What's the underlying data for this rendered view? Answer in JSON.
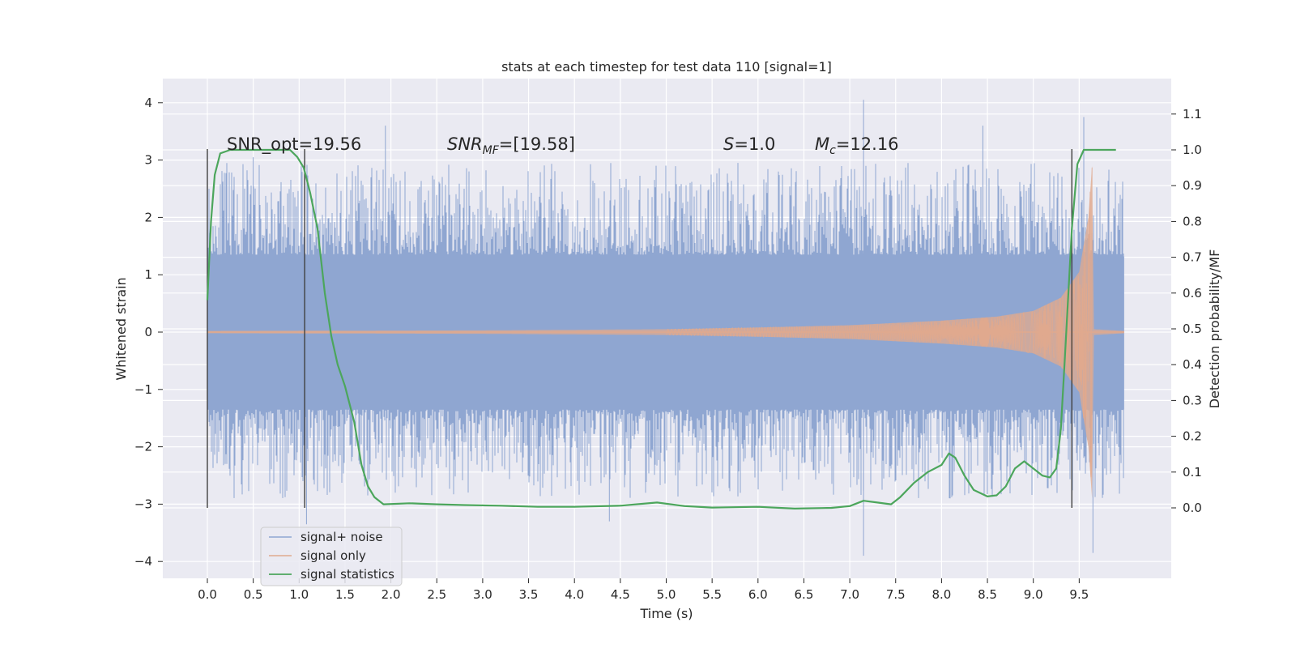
{
  "chart_data": {
    "type": "line",
    "title": "stats at each timestep for test data 110 [signal=1]",
    "xlabel": "Time (s)",
    "ylabel_left": "Whitened strain",
    "ylabel_right": "Detection probability/MF",
    "xlim": [
      -0.5,
      10.5
    ],
    "ylim_left": [
      -4.2,
      4.45
    ],
    "ylim_right": [
      -0.2,
      1.18
    ],
    "x_ticks": [
      "0.0",
      "0.5",
      "1.0",
      "1.5",
      "2.0",
      "2.5",
      "3.0",
      "3.5",
      "4.0",
      "4.5",
      "5.0",
      "5.5",
      "6.0",
      "6.5",
      "7.0",
      "7.5",
      "8.0",
      "8.5",
      "9.0",
      "9.5"
    ],
    "y_left_ticks": [
      "4",
      "3",
      "2",
      "1",
      "0",
      "−1",
      "−2",
      "−3",
      "−4"
    ],
    "y_right_ticks": [
      "1.1",
      "1.0",
      "0.9",
      "0.8",
      "0.7",
      "0.6",
      "0.5",
      "0.4",
      "0.3",
      "0.2",
      "0.1",
      "0.0"
    ],
    "grid": true,
    "legend_position": "bottom-left",
    "annotations": {
      "snr_opt": "SNR_opt=19.56",
      "snr_mf_main": "SNR",
      "snr_mf_sub": "MF",
      "snr_mf_rest": "=[19.58]",
      "s_main": "S",
      "s_rest": "=1.0",
      "mc_main": "M",
      "mc_sub": "c",
      "mc_rest": "=12.16"
    },
    "vertical_markers_x": [
      0.0,
      1.06,
      9.42
    ],
    "series": [
      {
        "name": "signal+ noise",
        "color": "#8fa6d1",
        "axis": "left",
        "x_range": [
          0.0,
          9.99
        ],
        "band": [
          -1.35,
          1.32
        ],
        "spike_peaks": [
          {
            "x": 0.5,
            "y": 3.05
          },
          {
            "x": 1.08,
            "y": -3.35
          },
          {
            "x": 1.94,
            "y": 3.6
          },
          {
            "x": 4.38,
            "y": -3.3
          },
          {
            "x": 7.15,
            "y": 4.05
          },
          {
            "x": 7.15,
            "y": -3.9
          },
          {
            "x": 8.45,
            "y": 3.6
          },
          {
            "x": 9.55,
            "y": 3.75
          },
          {
            "x": 9.65,
            "y": -3.85
          }
        ]
      },
      {
        "name": "signal only",
        "color": "#e0a98e",
        "axis": "left",
        "envelope": [
          [
            0.0,
            0.02
          ],
          [
            3.0,
            0.03
          ],
          [
            5.0,
            0.05
          ],
          [
            6.0,
            0.08
          ],
          [
            7.0,
            0.12
          ],
          [
            8.0,
            0.2
          ],
          [
            8.6,
            0.27
          ],
          [
            9.0,
            0.37
          ],
          [
            9.3,
            0.6
          ],
          [
            9.5,
            1.05
          ],
          [
            9.6,
            2.0
          ],
          [
            9.64,
            2.9
          ],
          [
            9.66,
            0.05
          ],
          [
            9.99,
            0.02
          ]
        ]
      },
      {
        "name": "signal statistics",
        "color": "#4ca65c",
        "axis": "right",
        "points": [
          [
            0.0,
            0.58
          ],
          [
            0.04,
            0.8
          ],
          [
            0.08,
            0.93
          ],
          [
            0.14,
            0.99
          ],
          [
            0.25,
            1.0
          ],
          [
            0.5,
            1.0
          ],
          [
            0.75,
            1.0
          ],
          [
            0.9,
            1.0
          ],
          [
            0.98,
            0.98
          ],
          [
            1.05,
            0.95
          ],
          [
            1.12,
            0.88
          ],
          [
            1.2,
            0.78
          ],
          [
            1.28,
            0.6
          ],
          [
            1.35,
            0.48
          ],
          [
            1.42,
            0.4
          ],
          [
            1.5,
            0.34
          ],
          [
            1.6,
            0.24
          ],
          [
            1.68,
            0.12
          ],
          [
            1.75,
            0.06
          ],
          [
            1.82,
            0.03
          ],
          [
            1.92,
            0.01
          ],
          [
            2.2,
            0.013
          ],
          [
            2.5,
            0.01
          ],
          [
            2.8,
            0.008
          ],
          [
            3.2,
            0.006
          ],
          [
            3.6,
            0.003
          ],
          [
            4.0,
            0.003
          ],
          [
            4.5,
            0.006
          ],
          [
            4.9,
            0.015
          ],
          [
            5.2,
            0.005
          ],
          [
            5.5,
            0.001
          ],
          [
            6.0,
            0.003
          ],
          [
            6.4,
            -0.002
          ],
          [
            6.8,
            0.0
          ],
          [
            7.0,
            0.005
          ],
          [
            7.15,
            0.02
          ],
          [
            7.3,
            0.015
          ],
          [
            7.45,
            0.01
          ],
          [
            7.55,
            0.03
          ],
          [
            7.7,
            0.07
          ],
          [
            7.85,
            0.1
          ],
          [
            8.0,
            0.12
          ],
          [
            8.08,
            0.152
          ],
          [
            8.15,
            0.14
          ],
          [
            8.25,
            0.09
          ],
          [
            8.35,
            0.05
          ],
          [
            8.5,
            0.032
          ],
          [
            8.6,
            0.035
          ],
          [
            8.7,
            0.06
          ],
          [
            8.8,
            0.11
          ],
          [
            8.9,
            0.13
          ],
          [
            9.0,
            0.11
          ],
          [
            9.1,
            0.09
          ],
          [
            9.18,
            0.085
          ],
          [
            9.25,
            0.11
          ],
          [
            9.3,
            0.22
          ],
          [
            9.35,
            0.45
          ],
          [
            9.42,
            0.78
          ],
          [
            9.48,
            0.96
          ],
          [
            9.55,
            1.0
          ],
          [
            9.7,
            1.0
          ],
          [
            9.9,
            1.0
          ]
        ]
      }
    ]
  }
}
